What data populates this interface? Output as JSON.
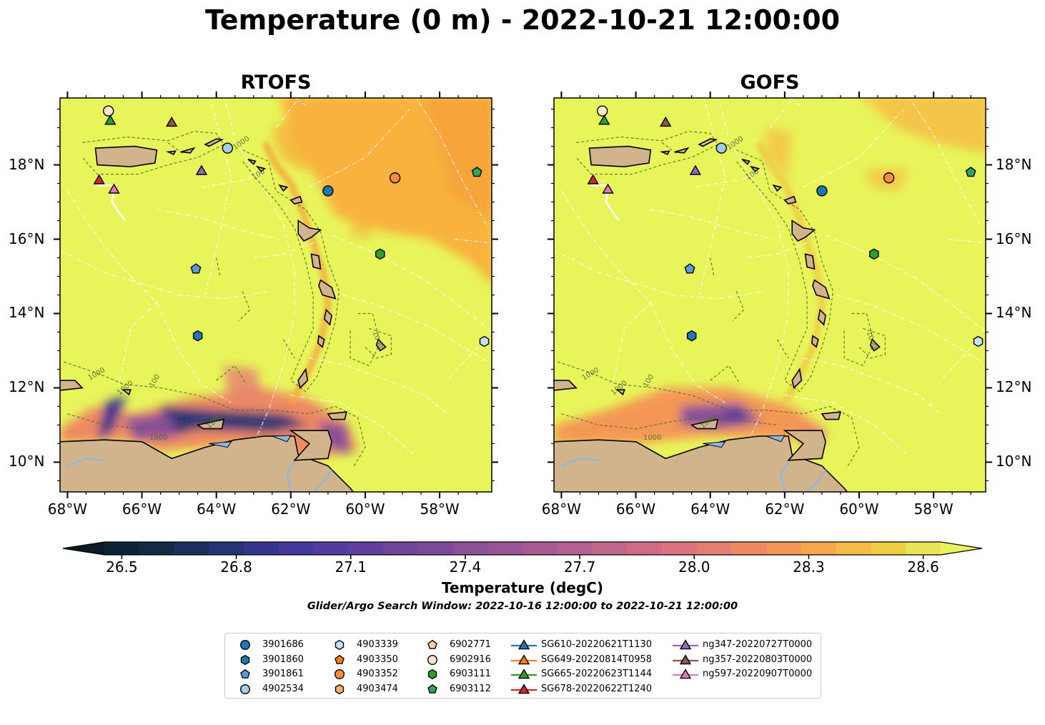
{
  "figure": {
    "title": "Temperature (0 m) - 2022-10-21 12:00:00",
    "colorbar_label": "Temperature (degC)",
    "search_window": "Glider/Argo Search Window: 2022-10-16 12:00:00 to 2022-10-21 12:00:00"
  },
  "panels": [
    {
      "id": "rtofs",
      "title": "RTOFS",
      "lat_labels_side": "left"
    },
    {
      "id": "gofs",
      "title": "GOFS",
      "lat_labels_side": "right"
    }
  ],
  "axes": {
    "lon_range": [
      -68.2,
      -56.6
    ],
    "lat_range": [
      9.2,
      19.8
    ],
    "lon_ticks": [
      {
        "value": -68,
        "label": "68°W"
      },
      {
        "value": -66,
        "label": "66°W"
      },
      {
        "value": -64,
        "label": "64°W"
      },
      {
        "value": -62,
        "label": "62°W"
      },
      {
        "value": -60,
        "label": "60°W"
      },
      {
        "value": -58,
        "label": "58°W"
      }
    ],
    "lat_ticks": [
      {
        "value": 10,
        "label": "10°N"
      },
      {
        "value": 12,
        "label": "12°N"
      },
      {
        "value": 14,
        "label": "14°N"
      },
      {
        "value": 16,
        "label": "16°N"
      },
      {
        "value": 18,
        "label": "18°N"
      }
    ]
  },
  "colorbar": {
    "min": 26.5,
    "max": 28.6,
    "step": 0.1,
    "ticks": [
      "26.5",
      "26.8",
      "27.1",
      "27.4",
      "27.7",
      "28.0",
      "28.3",
      "28.6"
    ],
    "colors": [
      "#0b2534",
      "#142a45",
      "#1c2f5e",
      "#263477",
      "#34368e",
      "#43389c",
      "#533a9f",
      "#613f9e",
      "#6f459c",
      "#7d4a9a",
      "#8b5097",
      "#995595",
      "#a75a92",
      "#b56090",
      "#c3668c",
      "#d06b86",
      "#dc737e",
      "#e67d72",
      "#ee8962",
      "#f49755",
      "#f7a84b",
      "#f6bb45",
      "#f0d040",
      "#e8e657"
    ],
    "under_color": "#0b1a26",
    "over_color": "#e8f35a"
  },
  "map_colors": {
    "ocean": "#e8f55a",
    "warm": "#f8b23c",
    "land": "#d1b48c",
    "river": "#8fb5e6",
    "contour": "#4a6b2c"
  },
  "contour_labels": [
    "100",
    "1000"
  ],
  "legend": [
    {
      "label": "3901686",
      "marker": "circle",
      "color": "#1f77b4"
    },
    {
      "label": "3901860",
      "marker": "hexagon",
      "color": "#1f77b4"
    },
    {
      "label": "3901861",
      "marker": "pentagon",
      "color": "#5b9bd5"
    },
    {
      "label": "4902534",
      "marker": "circle",
      "color": "#a6cee3"
    },
    {
      "label": "4903339",
      "marker": "hexagon",
      "color": "#c6e3f5"
    },
    {
      "label": "4903350",
      "marker": "pentagon",
      "color": "#ff7f0e"
    },
    {
      "label": "4903352",
      "marker": "circle",
      "color": "#fd8d3c"
    },
    {
      "label": "4903474",
      "marker": "hexagon",
      "color": "#fdae6b"
    },
    {
      "label": "6902771",
      "marker": "pentagon",
      "color": "#fdd0a2"
    },
    {
      "label": "6902916",
      "marker": "circle",
      "color": "#fee6ce"
    },
    {
      "label": "6903111",
      "marker": "hexagon",
      "color": "#2ca02c"
    },
    {
      "label": "6903112",
      "marker": "pentagon",
      "color": "#31a354"
    },
    {
      "label": "SG610-20220621T1130",
      "marker": "triangle",
      "color": "#1f77b4"
    },
    {
      "label": "SG649-20220814T0958",
      "marker": "triangle",
      "color": "#ff7f0e"
    },
    {
      "label": "SG665-20220623T1144",
      "marker": "triangle",
      "color": "#2ca02c"
    },
    {
      "label": "SG678-20220622T1240",
      "marker": "triangle",
      "color": "#d62728"
    },
    {
      "label": "ng347-20220727T0000",
      "marker": "triangle",
      "color": "#9467bd"
    },
    {
      "label": "ng357-20220803T0000",
      "marker": "triangle",
      "color": "#8c564b"
    },
    {
      "label": "ng597-20220907T0000",
      "marker": "triangle",
      "color": "#e377c2"
    }
  ],
  "observations": [
    {
      "id": "3901686",
      "lon": -61.0,
      "lat": 17.3
    },
    {
      "id": "3901860",
      "lon": -64.5,
      "lat": 13.4
    },
    {
      "id": "3901861",
      "lon": -64.55,
      "lat": 15.2
    },
    {
      "id": "4902534",
      "lon": -63.7,
      "lat": 18.45
    },
    {
      "id": "4903339",
      "lon": -56.8,
      "lat": 13.25
    },
    {
      "id": "4903352",
      "lon": -59.2,
      "lat": 17.65
    },
    {
      "id": "6902916",
      "lon": -66.9,
      "lat": 19.45
    },
    {
      "id": "6903111",
      "lon": -59.6,
      "lat": 15.6
    },
    {
      "id": "6903112",
      "lon": -57.0,
      "lat": 17.8
    },
    {
      "id": "SG665-20220623T1144",
      "lon": -66.85,
      "lat": 19.2
    },
    {
      "id": "SG678-20220622T1240",
      "lon": -67.15,
      "lat": 17.6
    },
    {
      "id": "ng357-20220803T0000",
      "lon": -65.2,
      "lat": 19.15
    },
    {
      "id": "ng347-20220727T0000",
      "lon": -64.4,
      "lat": 17.85
    },
    {
      "id": "ng597-20220907T0000",
      "lon": -66.75,
      "lat": 17.35
    }
  ]
}
